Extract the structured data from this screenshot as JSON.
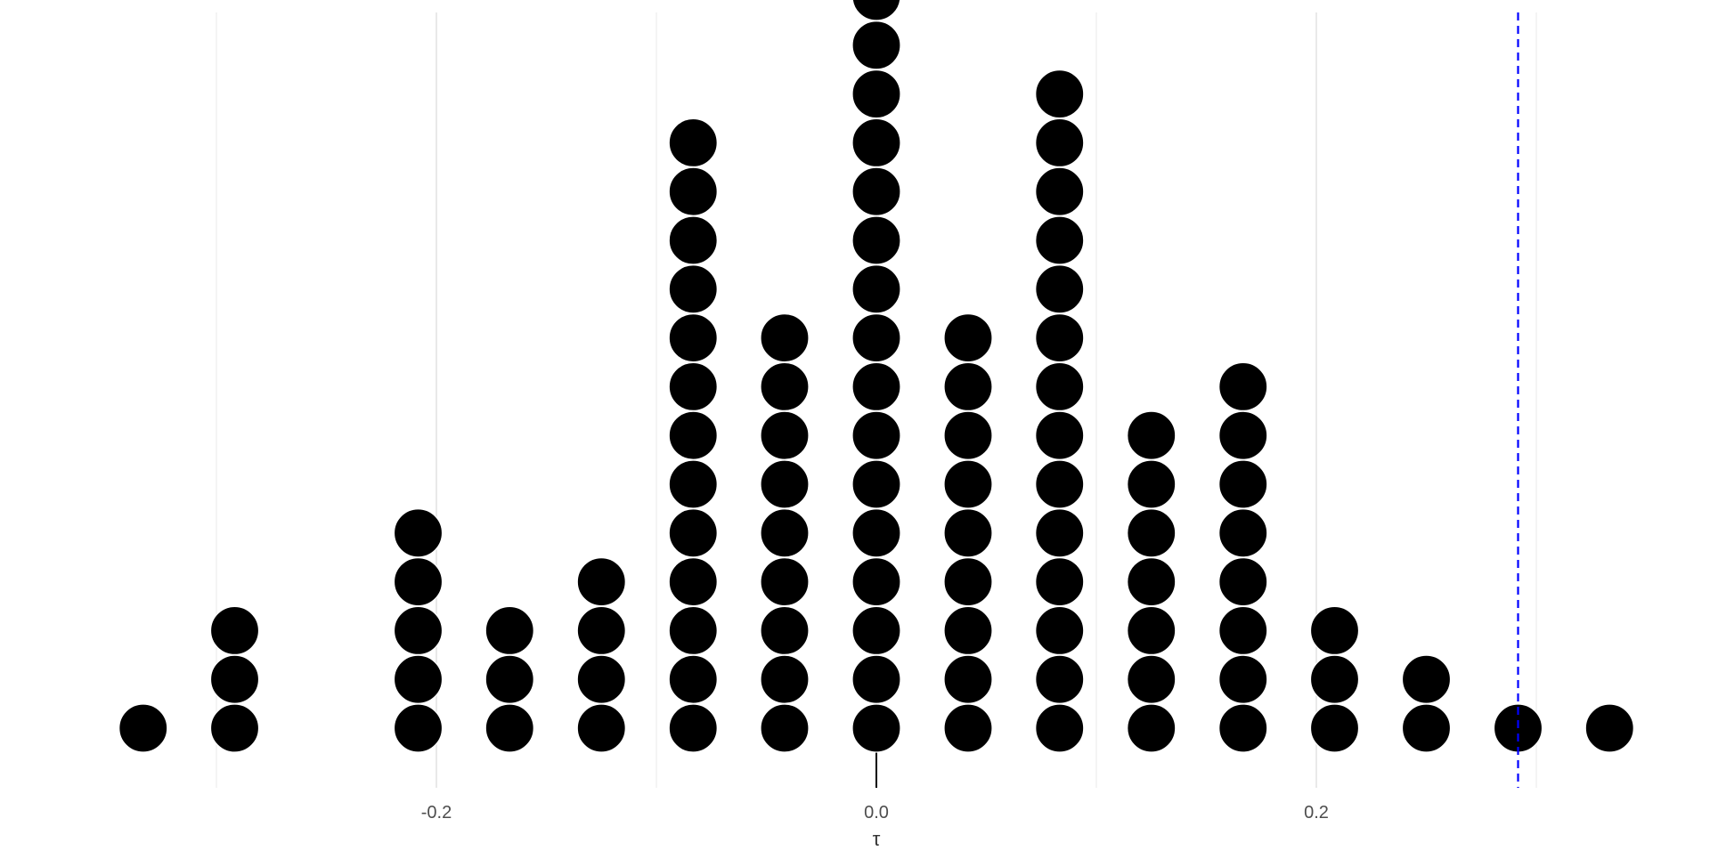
{
  "chart_data": {
    "type": "dotplot",
    "title": "",
    "xlabel": "τ",
    "ylabel": "",
    "xlim": [
      -0.3,
      0.3
    ],
    "grid": {
      "major_x": true,
      "minor_x": true,
      "y": false
    },
    "x_major_ticks": [
      -0.2,
      0.0,
      0.2
    ],
    "x_tick_labels": [
      "-0.2",
      "0.0",
      "0.2"
    ],
    "x_minor_ticks": [
      -0.3,
      -0.1,
      0.1,
      0.3
    ],
    "bins": [
      {
        "x": -0.3333,
        "count": 1
      },
      {
        "x": -0.2917,
        "count": 3
      },
      {
        "x": -0.2083,
        "count": 5
      },
      {
        "x": -0.1667,
        "count": 3
      },
      {
        "x": -0.125,
        "count": 4
      },
      {
        "x": -0.0833,
        "count": 13
      },
      {
        "x": -0.0417,
        "count": 9
      },
      {
        "x": 0.0,
        "count": 16
      },
      {
        "x": 0.0417,
        "count": 9
      },
      {
        "x": 0.0833,
        "count": 14
      },
      {
        "x": 0.125,
        "count": 7
      },
      {
        "x": 0.1667,
        "count": 8
      },
      {
        "x": 0.2083,
        "count": 3
      },
      {
        "x": 0.25,
        "count": 2
      },
      {
        "x": 0.2917,
        "count": 1
      },
      {
        "x": 0.3333,
        "count": 1
      }
    ],
    "reference_lines": [
      {
        "name": "null-reference",
        "x": 0.0,
        "style": "solid",
        "color": "#000000"
      },
      {
        "name": "observed-statistic",
        "x": 0.2917,
        "style": "dashed",
        "color": "#0000ff"
      }
    ]
  }
}
